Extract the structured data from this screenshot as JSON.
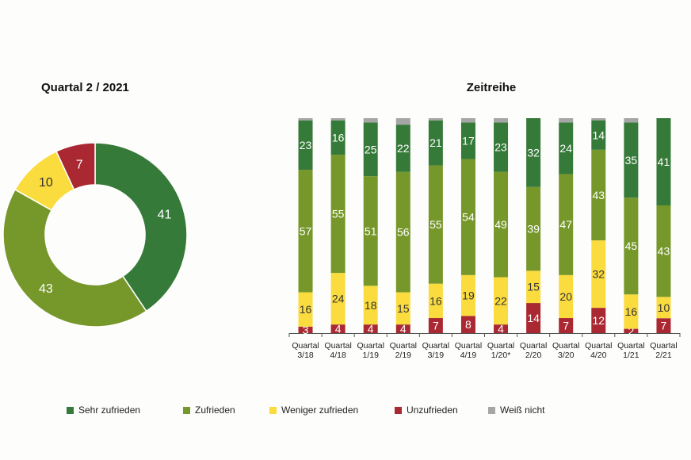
{
  "colors": {
    "sehr": "#367a39",
    "zufrieden": "#76982b",
    "weniger": "#fbdc3f",
    "unzufrieden": "#a92832",
    "weiss": "#a6a6a6"
  },
  "chart_data": [
    {
      "type": "pie",
      "title": "Quartal 2 / 2021",
      "slices": [
        {
          "label": "Sehr zufrieden",
          "value": 41
        },
        {
          "label": "Zufrieden",
          "value": 43
        },
        {
          "label": "Weniger zufrieden",
          "value": 10
        },
        {
          "label": "Unzufrieden",
          "value": 7
        }
      ]
    },
    {
      "type": "bar",
      "stacked": true,
      "title": "Zeitreihe",
      "categories": [
        [
          "Quartal",
          "3/18"
        ],
        [
          "Quartal",
          "4/18"
        ],
        [
          "Quartal",
          "1/19"
        ],
        [
          "Quartal",
          "2/19"
        ],
        [
          "Quartal",
          "3/19"
        ],
        [
          "Quartal",
          "4/19"
        ],
        [
          "Quartal",
          "1/20*"
        ],
        [
          "Quartal",
          "2/20"
        ],
        [
          "Quartal",
          "3/20"
        ],
        [
          "Quartal",
          "4/20"
        ],
        [
          "Quartal",
          "1/21"
        ],
        [
          "Quartal",
          "2/21"
        ]
      ],
      "series": [
        {
          "name": "Unzufrieden",
          "values": [
            3,
            4,
            4,
            4,
            7,
            8,
            4,
            14,
            7,
            12,
            2,
            7
          ]
        },
        {
          "name": "Weniger zufrieden",
          "values": [
            16,
            24,
            18,
            15,
            16,
            19,
            22,
            15,
            20,
            32,
            16,
            10
          ]
        },
        {
          "name": "Zufrieden",
          "values": [
            57,
            55,
            51,
            56,
            55,
            54,
            49,
            39,
            47,
            43,
            45,
            43
          ]
        },
        {
          "name": "Sehr zufrieden",
          "values": [
            23,
            16,
            25,
            22,
            21,
            17,
            23,
            32,
            24,
            14,
            35,
            41
          ]
        },
        {
          "name": "Weiß nicht",
          "values": [
            1,
            1,
            2,
            3,
            1,
            2,
            2,
            0,
            2,
            1,
            2,
            0
          ]
        }
      ]
    }
  ],
  "legend": [
    {
      "label": "Sehr zufrieden",
      "color": "#367a39"
    },
    {
      "label": "Zufrieden",
      "color": "#76982b"
    },
    {
      "label": "Weniger zufrieden",
      "color": "#fbdc3f"
    },
    {
      "label": "Unzufrieden",
      "color": "#a92832"
    },
    {
      "label": "Weiß nicht",
      "color": "#a6a6a6"
    }
  ]
}
